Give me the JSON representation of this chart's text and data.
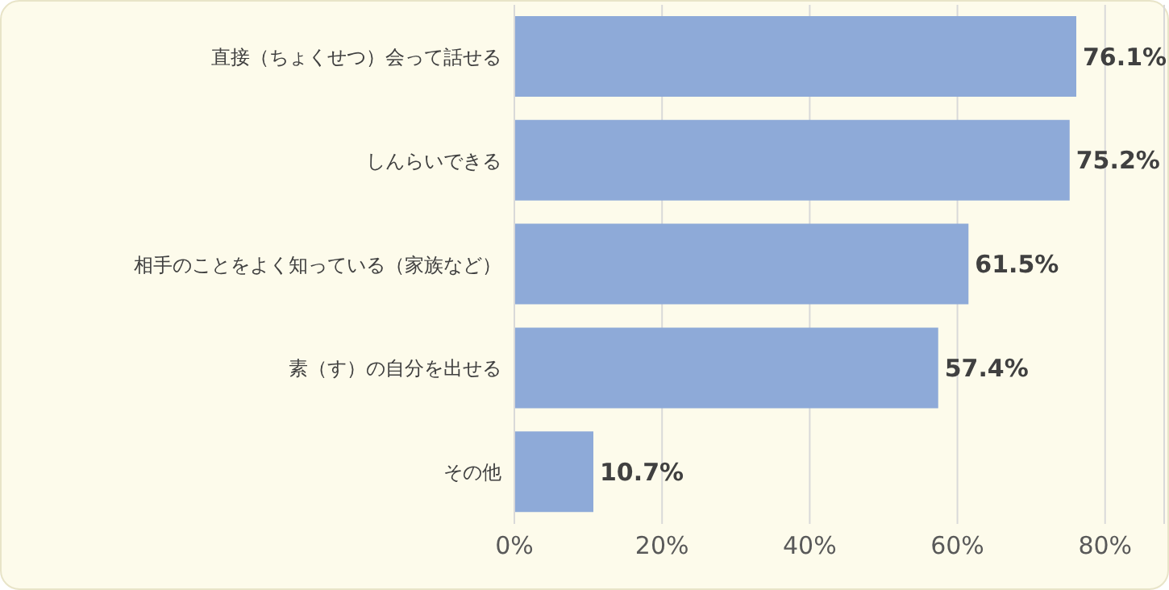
{
  "chart_data": {
    "type": "bar",
    "orientation": "horizontal",
    "categories": [
      "直接（ちょくせつ）会って話せる",
      "しんらいできる",
      "相手のことをよく知っている（家族など）",
      "素（す）の自分を出せる",
      "その他"
    ],
    "values": [
      76.1,
      75.2,
      61.5,
      57.4,
      10.7
    ],
    "color": "#8eaad8",
    "value_labels": [
      "76.1%",
      "75.2%",
      "61.5%",
      "57.4%",
      "10.7%"
    ],
    "xlim": [
      0,
      88
    ],
    "xticks": [
      {
        "value": 0,
        "label": "0%"
      },
      {
        "value": 20,
        "label": "20%"
      },
      {
        "value": 40,
        "label": "40%"
      },
      {
        "value": 60,
        "label": "60%"
      },
      {
        "value": 80,
        "label": "80%"
      }
    ],
    "grid": "x"
  }
}
